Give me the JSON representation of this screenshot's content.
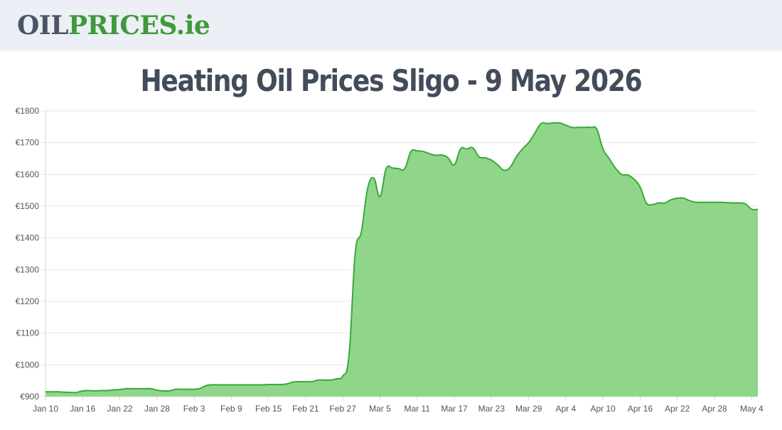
{
  "header": {
    "logo_part1": "OIL",
    "logo_part2": "PRICES",
    "logo_part3": ".ie"
  },
  "page": {
    "title": "Heating Oil Prices Sligo - 9 May 2026"
  },
  "colors": {
    "line": "#3aa83a",
    "fill": "#8fd68b",
    "grid": "#e5e5e5",
    "axis_text": "#555555",
    "title": "#434c5a"
  },
  "chart_data": {
    "type": "area",
    "title": "Heating Oil Prices Sligo - 9 May 2026",
    "xlabel": "",
    "ylabel": "",
    "ylim": [
      900,
      1800
    ],
    "grid": true,
    "legend": "none",
    "y_ticks": [
      900,
      1000,
      1100,
      1200,
      1300,
      1400,
      1500,
      1600,
      1700,
      1800
    ],
    "y_tick_labels": [
      "€900",
      "€1000",
      "€1100",
      "€1200",
      "€1300",
      "€1400",
      "€1500",
      "€1600",
      "€1700",
      "€1800"
    ],
    "x_tick_labels": [
      "Jan 10",
      "Jan 16",
      "Jan 22",
      "Jan 28",
      "Feb 3",
      "Feb 9",
      "Feb 15",
      "Feb 21",
      "Feb 27",
      "Mar 5",
      "Mar 11",
      "Mar 17",
      "Mar 23",
      "Mar 29",
      "Apr 4",
      "Apr 10",
      "Apr 16",
      "Apr 22",
      "Apr 28",
      "May 4"
    ],
    "series": [
      {
        "values": [
          915,
          915,
          915,
          914,
          913,
          913,
          918,
          919,
          918,
          919,
          919,
          921,
          922,
          925,
          925,
          925,
          925,
          925,
          920,
          918,
          918,
          923,
          923,
          923,
          923,
          926,
          935,
          937,
          937,
          937,
          937,
          937,
          937,
          937,
          937,
          937,
          938,
          938,
          938,
          940,
          946,
          947,
          947,
          947,
          952,
          952,
          952,
          956,
          965,
          1030,
          1350,
          1420,
          1555,
          1588,
          1530,
          1618,
          1620,
          1618,
          1618,
          1672,
          1674,
          1672,
          1665,
          1660,
          1661,
          1652,
          1630,
          1680,
          1680,
          1683,
          1655,
          1652,
          1645,
          1630,
          1613,
          1622,
          1655,
          1680,
          1700,
          1730,
          1760,
          1760,
          1762,
          1762,
          1755,
          1748,
          1748,
          1748,
          1748,
          1742,
          1680,
          1650,
          1620,
          1600,
          1598,
          1585,
          1560,
          1510,
          1505,
          1510,
          1510,
          1520,
          1525,
          1525,
          1517,
          1512,
          1512,
          1512,
          1512,
          1512,
          1511,
          1510,
          1510,
          1507,
          1490,
          1490
        ]
      }
    ]
  }
}
